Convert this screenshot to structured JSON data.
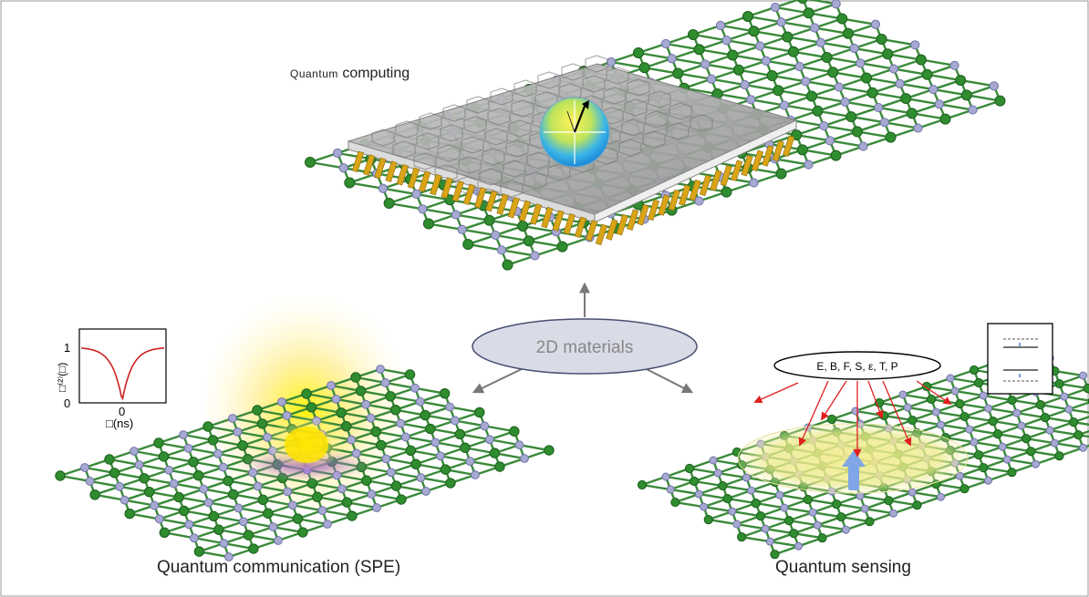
{
  "labels": {
    "computing_prefix": "Quantum",
    "computing_suffix": "computing",
    "communication": "Quantum communication (SPE)",
    "sensing": "Quantum sensing",
    "center": "2D materials"
  },
  "inset_plot": {
    "ylabel": "□⁽²⁾(□)",
    "xlabel": "□(ns)",
    "y_ticks": [
      "1",
      "0"
    ],
    "x_tick": "0"
  },
  "sensing_bubble": "E, B, F, S, ε, T, P",
  "colors": {
    "lattice_bond": "#3a8a3a",
    "atom_green": "#2f8c2f",
    "atom_gray": "#a7a9d2",
    "plate": "#a9a9a9",
    "pins": "#d9a417",
    "ellipse_fill": "#d9dbe6",
    "ellipse_stroke": "#4a4f73",
    "arrow_red": "#e02020",
    "dip_curve": "#cc2222"
  },
  "icons": [
    "bloch-sphere-icon",
    "spin-arrow-icon",
    "energy-level-icon"
  ]
}
